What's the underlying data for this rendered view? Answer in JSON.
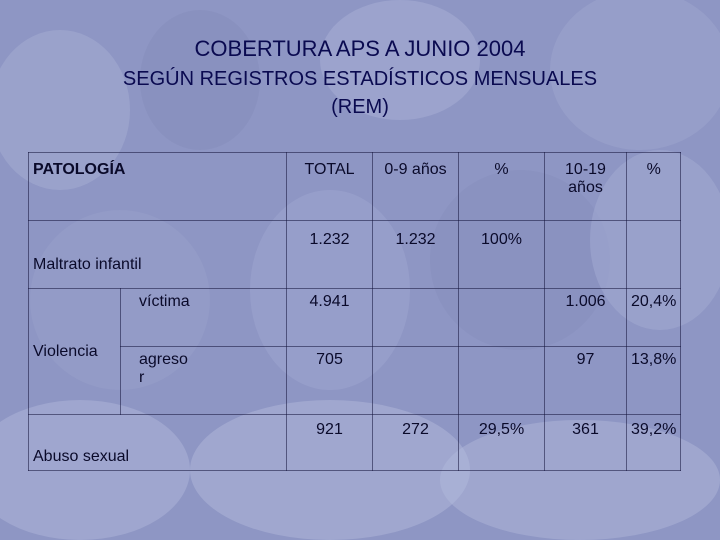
{
  "slide": {
    "title": "COBERTURA APS A JUNIO 2004",
    "subtitle_line1": "SEGÚN REGISTROS ESTADÍSTICOS MENSUALES",
    "subtitle_line2": "(REM)"
  },
  "table": {
    "headers": {
      "patologia": "PATOLOGÍA",
      "total": "TOTAL",
      "age_0_9": "0-9 años",
      "pct_1": "%",
      "age_10_19": "10-19 años",
      "pct_2": "%"
    },
    "maltrato": {
      "label": "Maltrato infantil",
      "total": "1.232",
      "age_0_9": "1.232",
      "pct_1": "100%"
    },
    "violencia": {
      "label": "Violencia",
      "victima": {
        "label": "víctima",
        "total": "4.941",
        "age_10_19": "1.006",
        "pct_2": "20,4%"
      },
      "agresor": {
        "label": "agresor",
        "total": "705",
        "age_10_19": "97",
        "pct_2": "13,8%"
      }
    },
    "abuso": {
      "label": "Abuso sexual",
      "total": "921",
      "age_0_9": "272",
      "pct_1": "29,5%",
      "age_10_19": "361",
      "pct_2": "39,2%"
    }
  }
}
